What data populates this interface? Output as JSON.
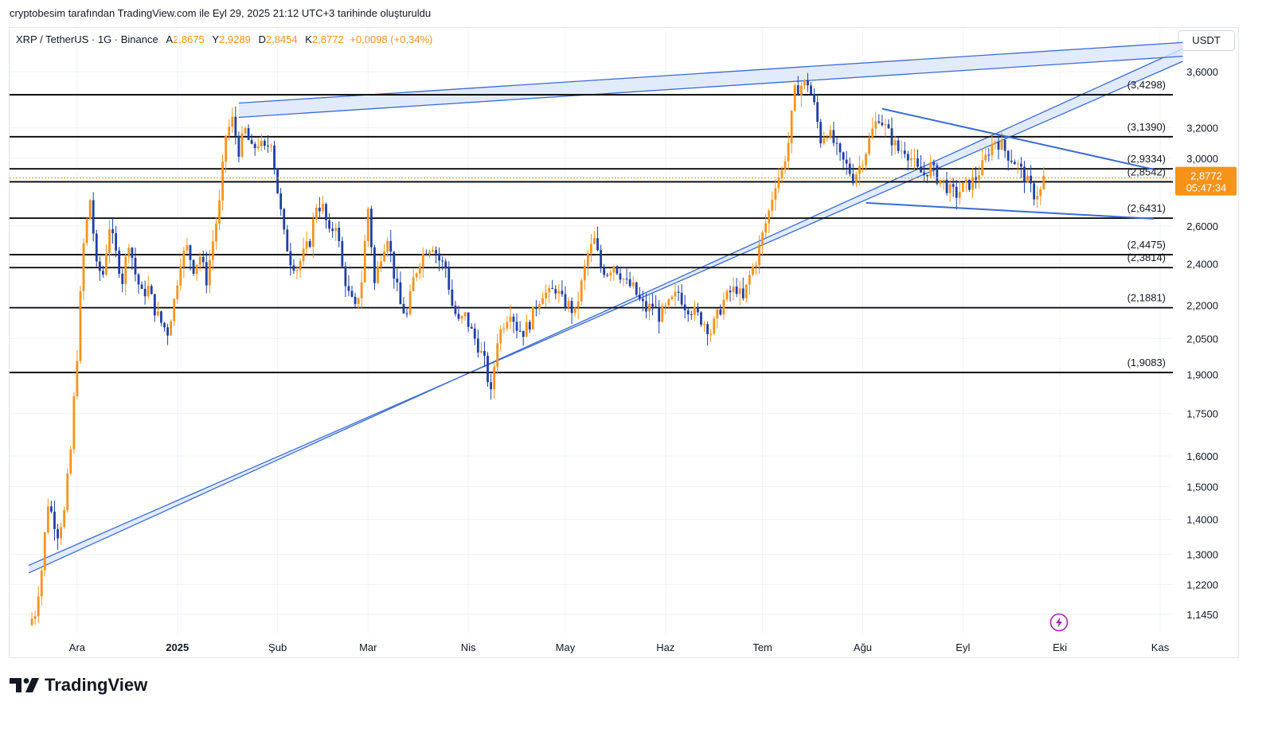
{
  "caption": "cryptobesim tarafından TradingView.com ile Eyl 29, 2025 21:12 UTC+3 tarihinde oluşturuldu",
  "legend": {
    "symbol": "XRP / TetherUS · 1G · Binance",
    "o_label": "A",
    "o_value": "2,8675",
    "h_label": "Y",
    "h_value": "2,9289",
    "l_label": "D",
    "l_value": "2,8454",
    "c_label": "K",
    "c_value": "2,8772",
    "change": "+0,0098 (+0,34%)"
  },
  "currency": "USDT",
  "brand": "TradingView",
  "icons": {
    "brand": "tradingview-logo-icon",
    "flash": "lightning-icon"
  },
  "colors": {
    "up": "#f7931a",
    "down": "#1e3fa5",
    "level": "#000000",
    "channel": "#3a6ad4",
    "channel_fill": "#dbe6fb",
    "price_tag": "#f7931a"
  },
  "chart_data": {
    "type": "candlestick",
    "scale": "log",
    "ylim": [
      1.1,
      3.95
    ],
    "y_ticks": [
      {
        "value": 3.6,
        "label": "3,6000"
      },
      {
        "value": 3.2,
        "label": "3,2000"
      },
      {
        "value": 3.0,
        "label": "3,0000"
      },
      {
        "value": 2.6,
        "label": "2,6000"
      },
      {
        "value": 2.4,
        "label": "2,4000"
      },
      {
        "value": 2.2,
        "label": "2,2000"
      },
      {
        "value": 2.05,
        "label": "2,0500"
      },
      {
        "value": 1.9,
        "label": "1,9000"
      },
      {
        "value": 1.75,
        "label": "1,7500"
      },
      {
        "value": 1.6,
        "label": "1,6000"
      },
      {
        "value": 1.5,
        "label": "1,5000"
      },
      {
        "value": 1.4,
        "label": "1,4000"
      },
      {
        "value": 1.3,
        "label": "1,3000"
      },
      {
        "value": 1.22,
        "label": "1,2200"
      },
      {
        "value": 1.145,
        "label": "1,1450"
      }
    ],
    "x_labels": [
      {
        "day": 8,
        "label": "Ara",
        "bold": false
      },
      {
        "day": 39,
        "label": "2025",
        "bold": true
      },
      {
        "day": 70,
        "label": "Şub",
        "bold": false
      },
      {
        "day": 98,
        "label": "Mar",
        "bold": false
      },
      {
        "day": 129,
        "label": "Nis",
        "bold": false
      },
      {
        "day": 159,
        "label": "May",
        "bold": false
      },
      {
        "day": 190,
        "label": "Haz",
        "bold": false
      },
      {
        "day": 220,
        "label": "Tem",
        "bold": false
      },
      {
        "day": 251,
        "label": "Ağu",
        "bold": false
      },
      {
        "day": 282,
        "label": "Eyl",
        "bold": false
      },
      {
        "day": 312,
        "label": "Eki",
        "bold": false
      },
      {
        "day": 343,
        "label": "Kas",
        "bold": false
      }
    ],
    "levels": [
      {
        "value": 3.4298,
        "label": "(3,4298)"
      },
      {
        "value": 3.139,
        "label": "(3,1390)"
      },
      {
        "value": 2.9334,
        "label": "(2,9334)"
      },
      {
        "value": 2.8542,
        "label": "(2,8542)"
      },
      {
        "value": 2.6431,
        "label": "(2,6431)"
      },
      {
        "value": 2.4475,
        "label": "(2,4475)"
      },
      {
        "value": 2.3814,
        "label": "(2,3814)"
      },
      {
        "value": 2.1881,
        "label": "(2,1881)"
      },
      {
        "value": 1.9083,
        "label": "(1,9083)"
      }
    ],
    "last_price": {
      "value": 2.8772,
      "label": "2,8772",
      "countdown": "05:47:34"
    },
    "channels": [
      {
        "start": [
          -7,
          1.25,
          1.27
        ],
        "end": [
          350,
          3.78,
          3.68
        ]
      },
      {
        "start": [
          58,
          3.37,
          3.27
        ],
        "end": [
          350,
          3.83,
          3.72
        ]
      }
    ],
    "wedge": [
      {
        "from": [
          257,
          3.33
        ],
        "to": [
          341,
          2.93
        ]
      },
      {
        "from": [
          252,
          2.73
        ],
        "to": [
          341,
          2.64
        ]
      }
    ],
    "anchors": [
      [
        -7,
        1.12
      ],
      [
        -5,
        1.15
      ],
      [
        -3,
        1.26
      ],
      [
        -1,
        1.45
      ],
      [
        2,
        1.36
      ],
      [
        4,
        1.42
      ],
      [
        6,
        1.62
      ],
      [
        8,
        1.98
      ],
      [
        10,
        2.5
      ],
      [
        12,
        2.75
      ],
      [
        14,
        2.38
      ],
      [
        16,
        2.35
      ],
      [
        18,
        2.6
      ],
      [
        20,
        2.45
      ],
      [
        22,
        2.32
      ],
      [
        24,
        2.52
      ],
      [
        26,
        2.35
      ],
      [
        28,
        2.25
      ],
      [
        30,
        2.28
      ],
      [
        32,
        2.18
      ],
      [
        34,
        2.12
      ],
      [
        36,
        2.08
      ],
      [
        38,
        2.22
      ],
      [
        40,
        2.42
      ],
      [
        42,
        2.48
      ],
      [
        44,
        2.38
      ],
      [
        46,
        2.44
      ],
      [
        48,
        2.32
      ],
      [
        50,
        2.52
      ],
      [
        52,
        2.72
      ],
      [
        54,
        3.15
      ],
      [
        56,
        3.25
      ],
      [
        58,
        3.05
      ],
      [
        60,
        3.18
      ],
      [
        62,
        3.05
      ],
      [
        64,
        3.1
      ],
      [
        66,
        3.05
      ],
      [
        68,
        3.12
      ],
      [
        70,
        2.8
      ],
      [
        72,
        2.55
      ],
      [
        74,
        2.42
      ],
      [
        76,
        2.38
      ],
      [
        78,
        2.45
      ],
      [
        80,
        2.52
      ],
      [
        82,
        2.72
      ],
      [
        84,
        2.7
      ],
      [
        86,
        2.55
      ],
      [
        88,
        2.62
      ],
      [
        90,
        2.38
      ],
      [
        92,
        2.25
      ],
      [
        94,
        2.18
      ],
      [
        96,
        2.32
      ],
      [
        98,
        2.7
      ],
      [
        100,
        2.3
      ],
      [
        102,
        2.45
      ],
      [
        104,
        2.55
      ],
      [
        106,
        2.35
      ],
      [
        108,
        2.2
      ],
      [
        110,
        2.15
      ],
      [
        112,
        2.32
      ],
      [
        114,
        2.42
      ],
      [
        116,
        2.48
      ],
      [
        118,
        2.5
      ],
      [
        120,
        2.42
      ],
      [
        122,
        2.38
      ],
      [
        124,
        2.2
      ],
      [
        126,
        2.12
      ],
      [
        128,
        2.15
      ],
      [
        130,
        2.08
      ],
      [
        132,
        2.02
      ],
      [
        134,
        1.95
      ],
      [
        136,
        1.82
      ],
      [
        138,
        2.05
      ],
      [
        140,
        2.12
      ],
      [
        142,
        2.18
      ],
      [
        144,
        2.1
      ],
      [
        146,
        2.08
      ],
      [
        148,
        2.12
      ],
      [
        150,
        2.2
      ],
      [
        152,
        2.26
      ],
      [
        154,
        2.25
      ],
      [
        156,
        2.28
      ],
      [
        158,
        2.22
      ],
      [
        160,
        2.2
      ],
      [
        162,
        2.16
      ],
      [
        164,
        2.3
      ],
      [
        166,
        2.45
      ],
      [
        168,
        2.52
      ],
      [
        170,
        2.38
      ],
      [
        172,
        2.36
      ],
      [
        174,
        2.4
      ],
      [
        176,
        2.35
      ],
      [
        178,
        2.3
      ],
      [
        180,
        2.28
      ],
      [
        182,
        2.22
      ],
      [
        184,
        2.18
      ],
      [
        186,
        2.2
      ],
      [
        188,
        2.15
      ],
      [
        190,
        2.18
      ],
      [
        192,
        2.22
      ],
      [
        194,
        2.26
      ],
      [
        196,
        2.2
      ],
      [
        198,
        2.18
      ],
      [
        200,
        2.15
      ],
      [
        202,
        2.12
      ],
      [
        204,
        2.08
      ],
      [
        206,
        2.15
      ],
      [
        208,
        2.22
      ],
      [
        210,
        2.26
      ],
      [
        212,
        2.28
      ],
      [
        214,
        2.22
      ],
      [
        216,
        2.34
      ],
      [
        218,
        2.42
      ],
      [
        220,
        2.55
      ],
      [
        222,
        2.68
      ],
      [
        224,
        2.85
      ],
      [
        226,
        2.92
      ],
      [
        228,
        3.1
      ],
      [
        230,
        3.45
      ],
      [
        232,
        3.5
      ],
      [
        234,
        3.52
      ],
      [
        236,
        3.35
      ],
      [
        238,
        3.12
      ],
      [
        240,
        3.18
      ],
      [
        242,
        3.1
      ],
      [
        244,
        3.0
      ],
      [
        246,
        2.95
      ],
      [
        248,
        2.88
      ],
      [
        250,
        2.95
      ],
      [
        252,
        3.05
      ],
      [
        254,
        3.18
      ],
      [
        256,
        3.28
      ],
      [
        258,
        3.2
      ],
      [
        260,
        3.12
      ],
      [
        262,
        3.05
      ],
      [
        264,
        3.06
      ],
      [
        266,
        3.0
      ],
      [
        268,
        2.92
      ],
      [
        270,
        2.9
      ],
      [
        272,
        2.95
      ],
      [
        274,
        2.88
      ],
      [
        276,
        2.85
      ],
      [
        278,
        2.8
      ],
      [
        280,
        2.78
      ],
      [
        282,
        2.82
      ],
      [
        284,
        2.84
      ],
      [
        286,
        2.88
      ],
      [
        288,
        2.95
      ],
      [
        290,
        3.05
      ],
      [
        292,
        3.12
      ],
      [
        294,
        3.08
      ],
      [
        296,
        3.02
      ],
      [
        298,
        2.98
      ],
      [
        300,
        2.92
      ],
      [
        302,
        2.85
      ],
      [
        304,
        2.78
      ],
      [
        306,
        2.8
      ],
      [
        307,
        2.8772
      ]
    ]
  }
}
